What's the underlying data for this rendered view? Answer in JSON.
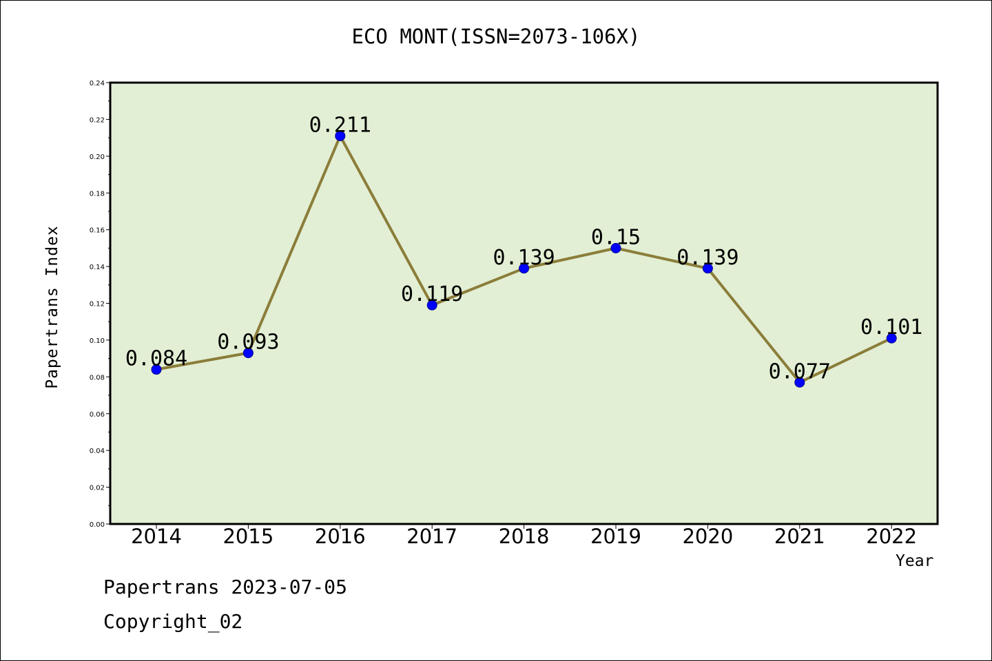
{
  "title": "ECO MONT(ISSN=2073-106X)",
  "footer": {
    "line1": "Papertrans 2023-07-05",
    "line2": "Copyright_02"
  },
  "colors": {
    "plot_bg": "#e2efd4",
    "line": "#8b7d3a",
    "marker": "#0000ff"
  },
  "chart_data": {
    "type": "line",
    "title": "ECO MONT(ISSN=2073-106X)",
    "xlabel": "Year",
    "ylabel": "Papertrans Index",
    "categories": [
      "2014",
      "2015",
      "2016",
      "2017",
      "2018",
      "2019",
      "2020",
      "2021",
      "2022"
    ],
    "series": [
      {
        "values": [
          0.084,
          0.093,
          0.211,
          0.119,
          0.139,
          0.15,
          0.139,
          0.077,
          0.101
        ],
        "labels": [
          "0.084",
          "0.093",
          "0.211",
          "0.119",
          "0.139",
          "0.15",
          "0.139",
          "0.077",
          "0.101"
        ]
      }
    ],
    "ylim": [
      0,
      0.24
    ],
    "yticks": [
      "0.00",
      "0.02",
      "0.04",
      "0.06",
      "0.08",
      "0.10",
      "0.12",
      "0.14",
      "0.16",
      "0.18",
      "0.20",
      "0.22",
      "0.24"
    ],
    "grid": false,
    "legend": "none"
  }
}
